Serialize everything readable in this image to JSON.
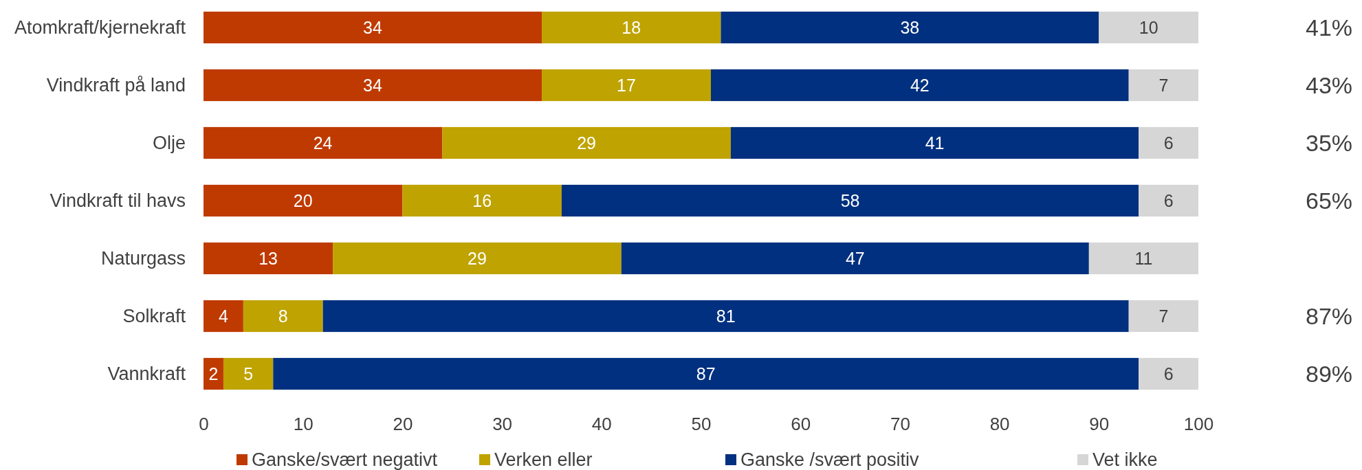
{
  "chart_data": {
    "type": "bar",
    "orientation": "horizontal",
    "stacked": true,
    "data_labels": true,
    "legend": "bottom",
    "categories": [
      "Atomkraft/kjernekraft",
      "Vindkraft på land",
      "Olje",
      "Vindkraft til havs",
      "Naturgass",
      "Solkraft",
      "Vannkraft"
    ],
    "series": [
      {
        "name": "Ganske/svært negativt",
        "color": "#bf3a00",
        "values": [
          34,
          34,
          24,
          20,
          13,
          4,
          2
        ]
      },
      {
        "name": "Verken eller",
        "color": "#bfa300",
        "values": [
          18,
          17,
          29,
          16,
          29,
          8,
          5
        ]
      },
      {
        "name": "Ganske /svært positiv",
        "color": "#00307f",
        "values": [
          38,
          42,
          41,
          58,
          47,
          81,
          87
        ]
      },
      {
        "name": "Vet ikke",
        "color": "#d6d6d6",
        "values": [
          10,
          7,
          6,
          6,
          11,
          7,
          6
        ]
      }
    ],
    "xlim": [
      0,
      100
    ],
    "xticks": [
      0,
      10,
      20,
      30,
      40,
      50,
      60,
      70,
      80,
      90,
      100
    ],
    "annotations": [
      "41%",
      "43%",
      "35%",
      "65%",
      "87%",
      "89%"
    ]
  }
}
